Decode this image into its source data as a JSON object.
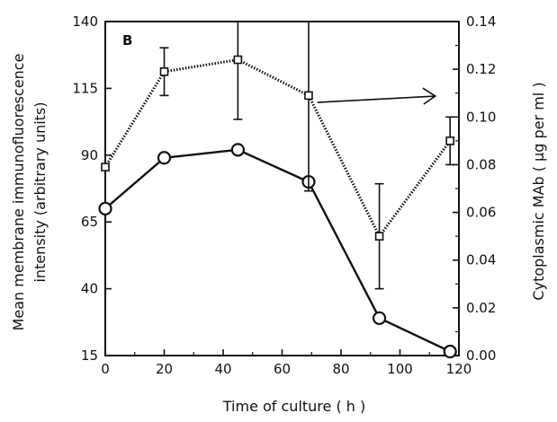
{
  "chart_data": {
    "type": "line",
    "panel_label": "B",
    "xlabel": "Time of culture ( h )",
    "ylabel_left": [
      "Mean membrane immunofluorescence",
      "intensity (arbitrary units)"
    ],
    "ylabel_right": "Cytoplasmic MAb ( µg per ml )",
    "xlim": [
      0,
      120
    ],
    "ylim_left": [
      15,
      140
    ],
    "ylim_right": [
      0,
      0.14
    ],
    "x_ticks": [
      0,
      20,
      40,
      60,
      80,
      100,
      120
    ],
    "y_left_ticks": [
      15,
      40,
      65,
      90,
      115,
      140
    ],
    "y_right_ticks": [
      "0.00",
      "0.02",
      "0.04",
      "0.06",
      "0.08",
      "0.10",
      "0.12",
      "0.14"
    ],
    "grid": false,
    "series": [
      {
        "axis": "left",
        "marker": "circle",
        "line": "solid",
        "x": [
          0,
          20,
          45,
          69,
          93,
          117
        ],
        "values": [
          70,
          89,
          92,
          80,
          29,
          16.5
        ]
      },
      {
        "axis": "right",
        "marker": "square",
        "line": "dotted",
        "x": [
          0,
          20,
          45,
          69,
          93,
          117
        ],
        "values": [
          0.079,
          0.119,
          0.124,
          0.109,
          0.05,
          0.09
        ],
        "error": [
          0,
          0.01,
          0.025,
          0.04,
          0.022,
          0.01
        ]
      }
    ],
    "annotations": [
      {
        "type": "arrow",
        "direction": "right",
        "meaning": "square series refers to right axis"
      }
    ]
  }
}
